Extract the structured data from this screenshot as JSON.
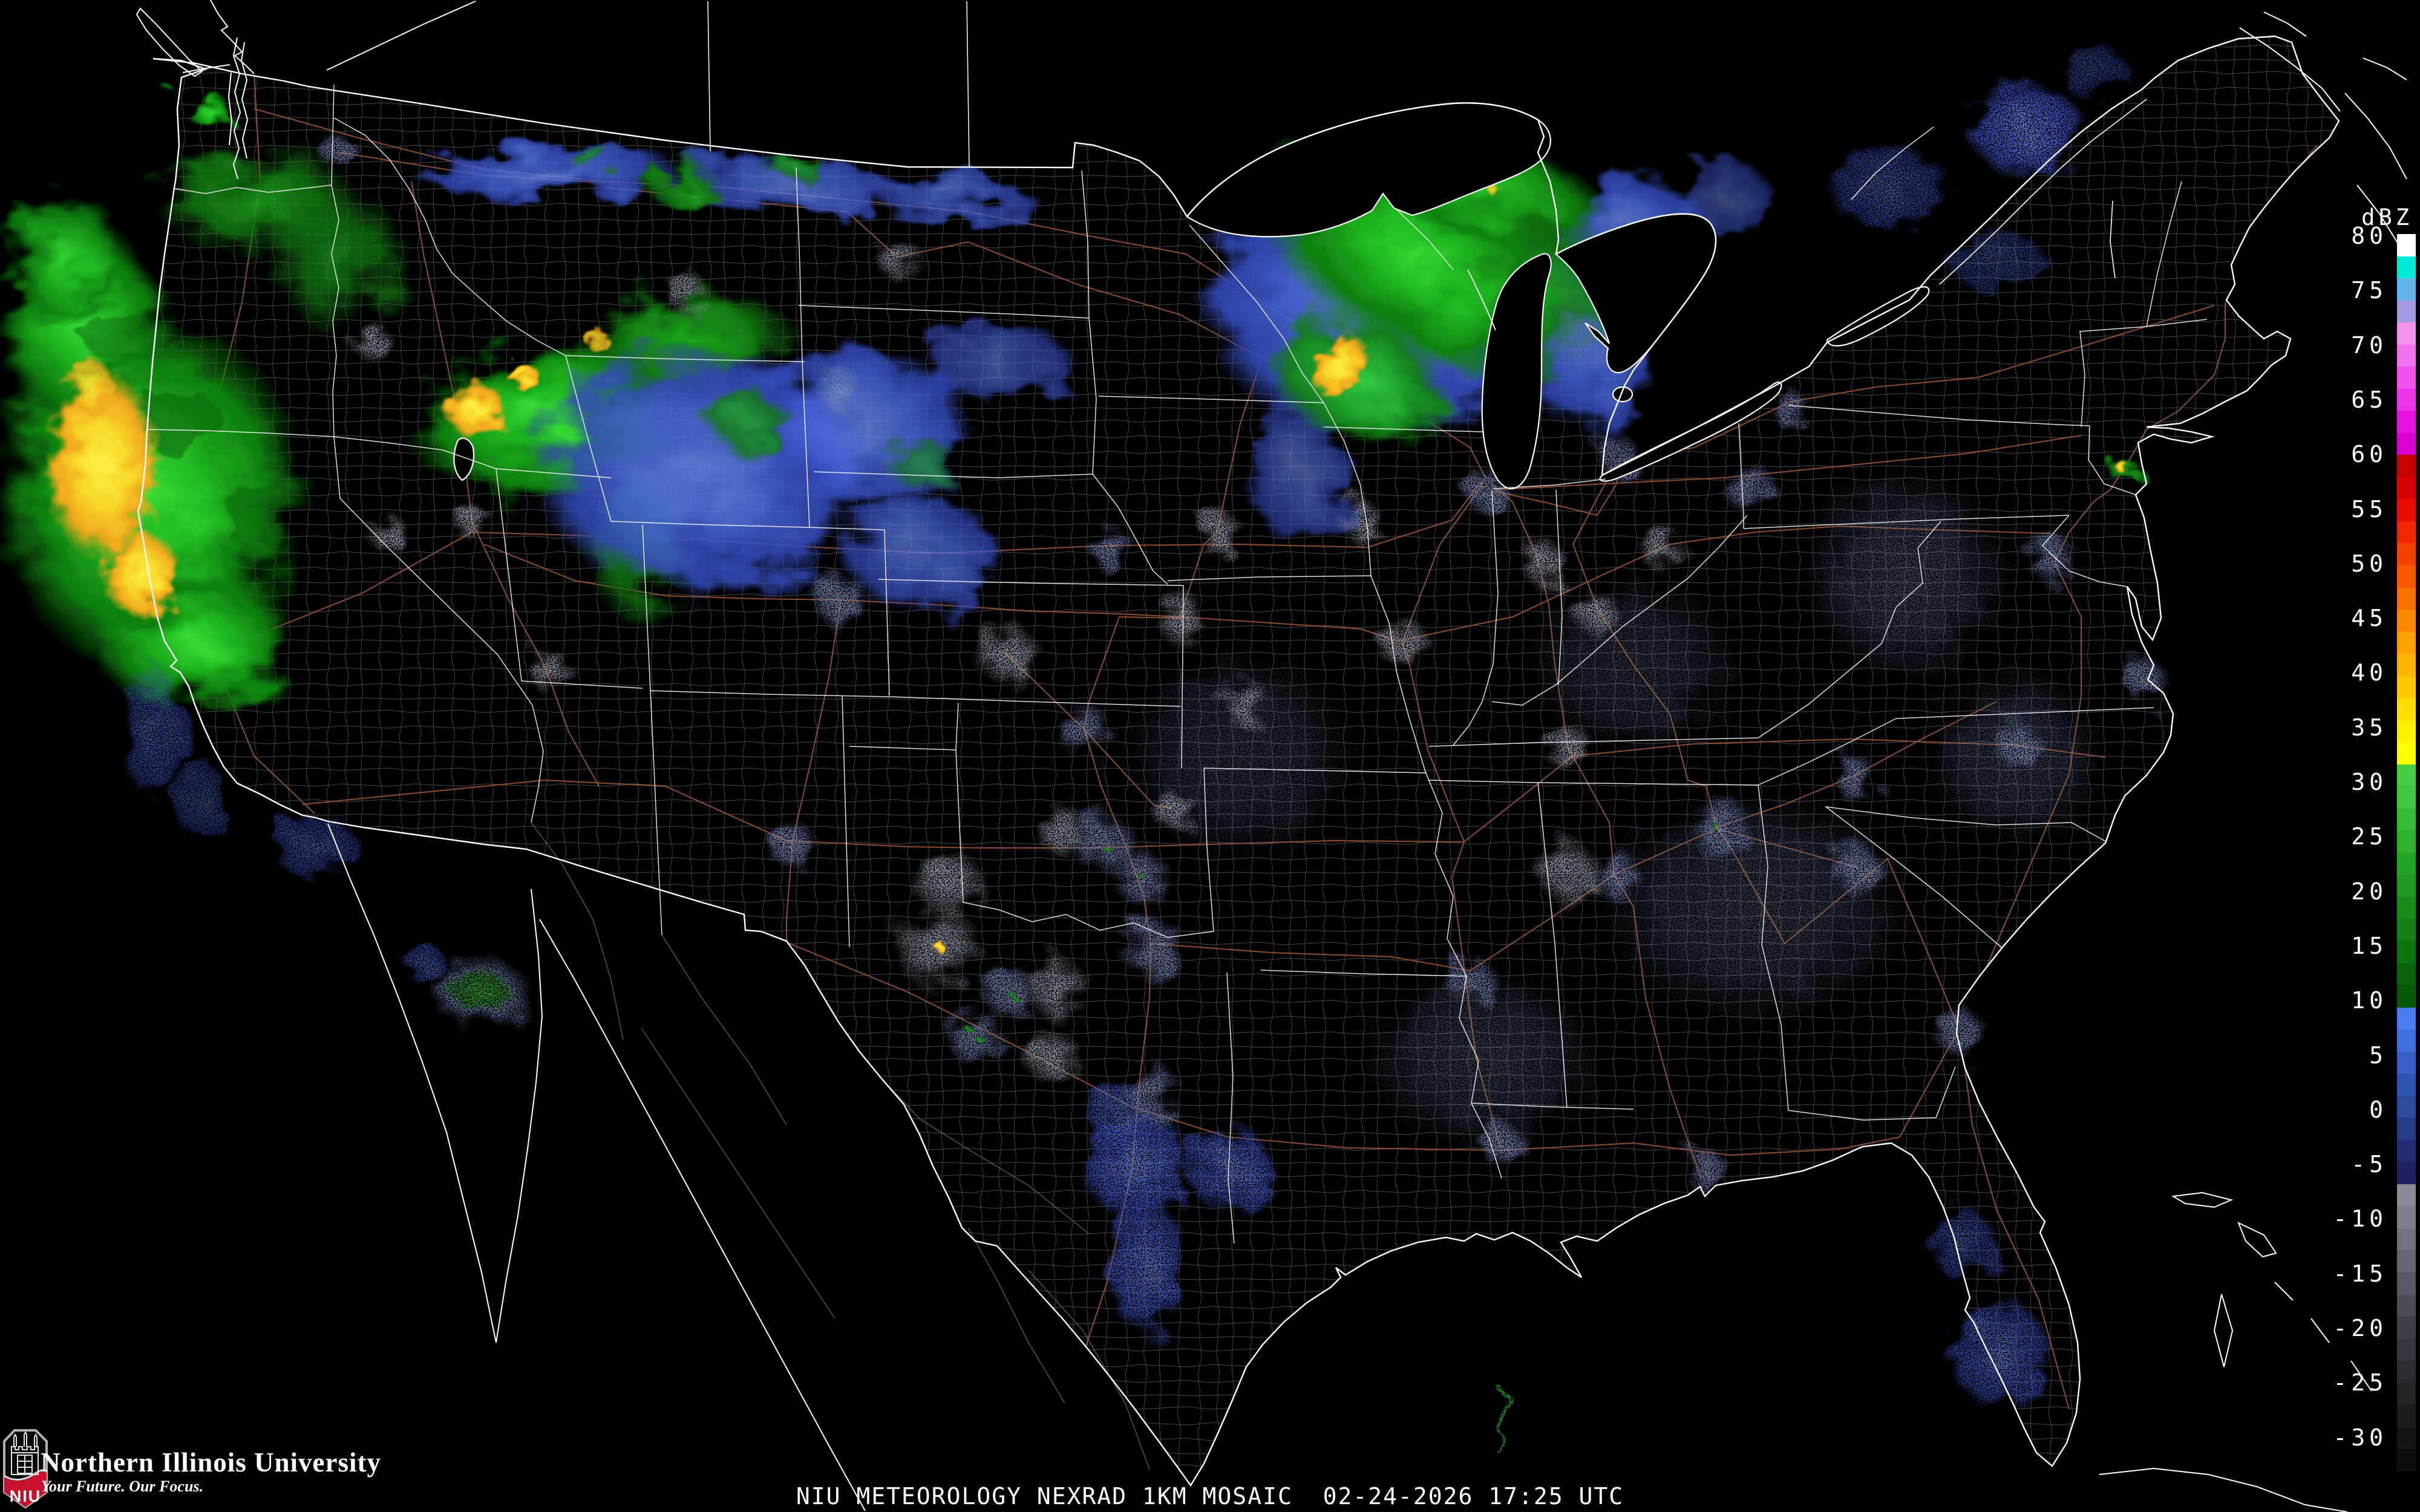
{
  "colorbar": {
    "title": "dBZ",
    "tick_values": [
      80,
      75,
      70,
      65,
      60,
      55,
      50,
      45,
      40,
      35,
      30,
      25,
      20,
      15,
      10,
      5,
      0,
      -5,
      -10,
      -15,
      -20,
      -25,
      -30
    ],
    "segment_colors": [
      "#FFFFFF",
      "#00E8D8",
      "#62B4EC",
      "#A29BE4",
      "#F492F0",
      "#F272EE",
      "#F052EC",
      "#EE32E8",
      "#E812E0",
      "#D800D0",
      "#C40000",
      "#D80000",
      "#E80C00",
      "#F02800",
      "#F44000",
      "#F85800",
      "#FA7000",
      "#FC8800",
      "#FDA000",
      "#FEB400",
      "#FFC800",
      "#FFDC00",
      "#FFF000",
      "#FFFF00",
      "#44D044",
      "#3CC83C",
      "#34BC34",
      "#2CB02C",
      "#24A424",
      "#1E981E",
      "#188C18",
      "#128012",
      "#0C740C",
      "#086408",
      "#045804",
      "#4A7CF0",
      "#3E6EE0",
      "#3460C8",
      "#2C54B0",
      "#2A4A9C",
      "#283C88",
      "#242C74",
      "#202060",
      "#8A8A96",
      "#7E7E8A",
      "#72727E",
      "#646472",
      "#585864",
      "#4C4C56",
      "#40404A",
      "#36363E",
      "#2C2C32",
      "#242428",
      "#1C1C20",
      "#141416",
      "#0E0E10"
    ]
  },
  "caption": {
    "text": "NIU METEOROLOGY NEXRAD 1KM MOSAIC  02-24-2026 17:25 UTC",
    "source": "NIU METEOROLOGY",
    "product": "NEXRAD 1KM MOSAIC",
    "date": "02-24-2026",
    "time": "17:25 UTC"
  },
  "branding": {
    "university": "Northern Illinois University",
    "tagline": "Your Future. Our Focus.",
    "shield_label": "NIU",
    "niu_red": "#C8102E",
    "silver": "#B1B3B3"
  },
  "map": {
    "background": "#000000",
    "coastline_color": "#FFFFFF",
    "state_border_color": "#F2F2F2",
    "county_line_color": "#8F8F8F",
    "road_color": "#A35C36",
    "legend_max_dbz": 80,
    "legend_min_dbz": -30
  }
}
